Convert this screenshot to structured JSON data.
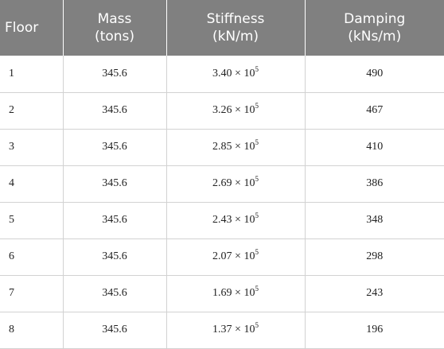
{
  "table": {
    "headers": [
      {
        "line1": "Floor",
        "line2": ""
      },
      {
        "line1": "Mass",
        "line2": "(tons)"
      },
      {
        "line1": "Stiffness",
        "line2": "(kN/m)"
      },
      {
        "line1": "Damping",
        "line2": "(kNs/m)"
      }
    ],
    "rows": [
      {
        "floor": "1",
        "mass": "345.6",
        "stiffness": "3.40 × 10",
        "stiffness_exp": "5",
        "damping": "490"
      },
      {
        "floor": "2",
        "mass": "345.6",
        "stiffness": "3.26 × 10",
        "stiffness_exp": "5",
        "damping": "467"
      },
      {
        "floor": "3",
        "mass": "345.6",
        "stiffness": "2.85 × 10",
        "stiffness_exp": "5",
        "damping": "410"
      },
      {
        "floor": "4",
        "mass": "345.6",
        "stiffness": "2.69 × 10",
        "stiffness_exp": "5",
        "damping": "386"
      },
      {
        "floor": "5",
        "mass": "345.6",
        "stiffness": "2.43 × 10",
        "stiffness_exp": "5",
        "damping": "348"
      },
      {
        "floor": "6",
        "mass": "345.6",
        "stiffness": "2.07 × 10",
        "stiffness_exp": "5",
        "damping": "298"
      },
      {
        "floor": "7",
        "mass": "345.6",
        "stiffness": "1.69 × 10",
        "stiffness_exp": "5",
        "damping": "243"
      },
      {
        "floor": "8",
        "mass": "345.6",
        "stiffness": "1.37 × 10",
        "stiffness_exp": "5",
        "damping": "196"
      }
    ]
  }
}
